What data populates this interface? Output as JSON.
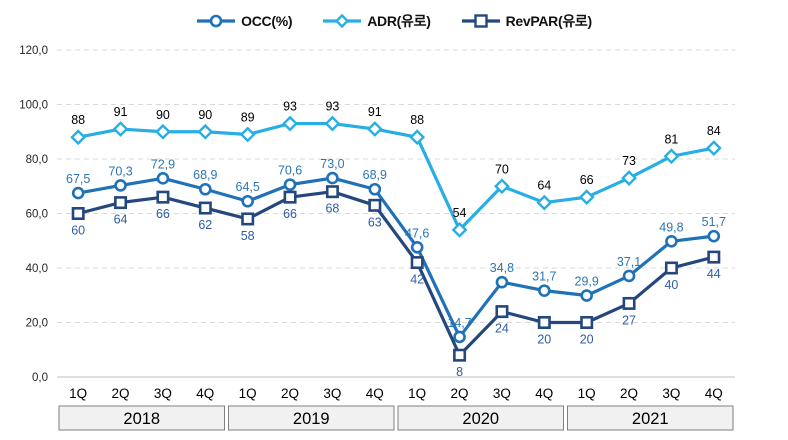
{
  "colors": {
    "occ_line": "#1F72B8",
    "occ_label": "#2E75B6",
    "adr_line": "#27AEE4",
    "adr_label": "#000000",
    "revpar_line": "#24477E",
    "revpar_label": "#2E5CA8",
    "grid_line": "#D9D9D9",
    "zero_line": "#BFBFBF",
    "tick_label": "#262626",
    "quarter_label": "#000000",
    "year_box_fill": "#F1F1F1",
    "year_box_border": "#7F7F7F",
    "year_text": "#000000",
    "marker_fill": "#FFFFFF"
  },
  "chart_data": {
    "type": "line",
    "legend_position": "top",
    "grid": true,
    "categories": [
      "1Q",
      "2Q",
      "3Q",
      "4Q",
      "1Q",
      "2Q",
      "3Q",
      "4Q",
      "1Q",
      "2Q",
      "3Q",
      "4Q",
      "1Q",
      "2Q",
      "3Q",
      "4Q"
    ],
    "year_groups": [
      "2018",
      "2019",
      "2020",
      "2021"
    ],
    "y_axis": {
      "min": 0,
      "max": 120,
      "step": 20,
      "tick_labels": [
        "0,0",
        "20,0",
        "40,0",
        "60,0",
        "80,0",
        "100,0",
        "120,0"
      ]
    },
    "series": [
      {
        "name": "OCC(%)",
        "marker": "circle",
        "color": "#1F72B8",
        "label_color": "#2E75B6",
        "label_position": "above",
        "values": [
          67.5,
          70.3,
          72.9,
          68.9,
          64.5,
          70.6,
          73.0,
          68.9,
          47.6,
          14.7,
          34.8,
          31.7,
          29.9,
          37.1,
          49.8,
          51.7
        ],
        "labels": [
          "67,5",
          "70,3",
          "72,9",
          "68,9",
          "64,5",
          "70,6",
          "73,0",
          "68,9",
          "47,6",
          "14,7",
          "34,8",
          "31,7",
          "29,9",
          "37,1",
          "49,8",
          "51,7"
        ]
      },
      {
        "name": "ADR(유로)",
        "marker": "diamond",
        "color": "#27AEE4",
        "label_color": "#000000",
        "label_position": "above",
        "values": [
          88,
          91,
          90,
          90,
          89,
          93,
          93,
          91,
          88,
          54,
          70,
          64,
          66,
          73,
          81,
          84
        ],
        "labels": [
          "88",
          "91",
          "90",
          "90",
          "89",
          "93",
          "93",
          "91",
          "88",
          "54",
          "70",
          "64",
          "66",
          "73",
          "81",
          "84"
        ]
      },
      {
        "name": "RevPAR(유로)",
        "marker": "square",
        "color": "#24477E",
        "label_color": "#2E5CA8",
        "label_position": "below",
        "values": [
          60,
          64,
          66,
          62,
          58,
          66,
          68,
          63,
          42,
          8,
          24,
          20,
          20,
          27,
          40,
          44
        ],
        "labels": [
          "60",
          "64",
          "66",
          "62",
          "58",
          "66",
          "68",
          "63",
          "42",
          "8",
          "24",
          "20",
          "20",
          "27",
          "40",
          "44"
        ]
      }
    ]
  }
}
